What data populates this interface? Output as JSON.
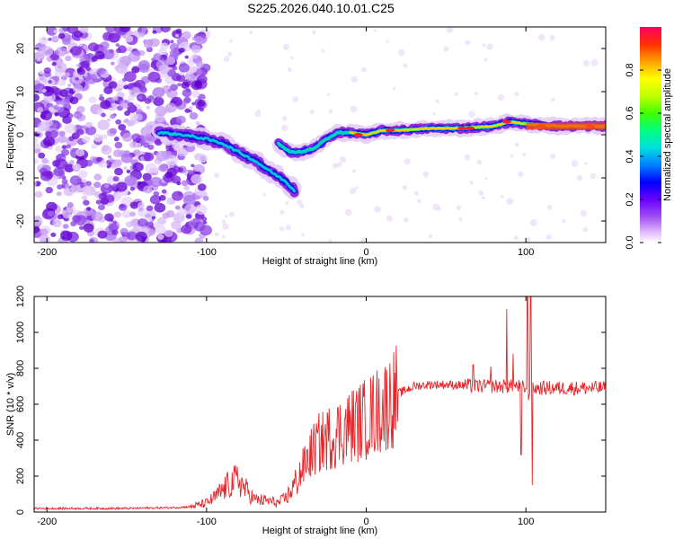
{
  "title": "S225.2026.040.10.01.C25",
  "colors": {
    "snr_line": "#e8262a",
    "scatter_purple": "#8a2be2",
    "frame": "#000000"
  },
  "chart_data": [
    {
      "type": "heatmap",
      "title": "S225.2026.040.10.01.C25",
      "xlabel": "Height of straight line (km)",
      "ylabel": "Frequency (Hz)",
      "xlim": [
        -208,
        150
      ],
      "ylim": [
        -25,
        25
      ],
      "xticks": [
        -200,
        -100,
        0,
        100
      ],
      "yticks": [
        -20,
        -10,
        0,
        10,
        20
      ],
      "colorbar": {
        "label": "Normalized spectral amplitude",
        "range": [
          0,
          1
        ],
        "ticks": [
          "0.0",
          "0.2",
          "0.4",
          "0.6",
          "0.8"
        ]
      },
      "ridge": {
        "segment1": [
          [
            -130,
            0.5
          ],
          [
            -115,
            0
          ],
          [
            -100,
            -1
          ],
          [
            -90,
            -2
          ],
          [
            -80,
            -4
          ],
          [
            -70,
            -6
          ],
          [
            -60,
            -8.5
          ],
          [
            -50,
            -11
          ],
          [
            -45,
            -13
          ]
        ],
        "segment2": [
          [
            -55,
            -2
          ],
          [
            -48,
            -4
          ],
          [
            -40,
            -4
          ],
          [
            -32,
            -3
          ],
          [
            -25,
            -1
          ],
          [
            -18,
            0.5
          ],
          [
            -10,
            0.5
          ],
          [
            0,
            0
          ],
          [
            10,
            1
          ],
          [
            20,
            1
          ],
          [
            40,
            1.5
          ],
          [
            60,
            1.5
          ],
          [
            80,
            2
          ],
          [
            90,
            3
          ],
          [
            100,
            2.5
          ],
          [
            120,
            2
          ],
          [
            150,
            2
          ]
        ]
      }
    },
    {
      "type": "line",
      "xlabel": "Height of straight line (km)",
      "ylabel": "SNR (10 * v/v)",
      "xlim": [
        -208,
        150
      ],
      "ylim": [
        0,
        1200
      ],
      "xticks": [
        -200,
        -100,
        0,
        100
      ],
      "yticks": [
        0,
        200,
        400,
        600,
        800,
        1000,
        1200
      ],
      "x": [
        -208,
        -180,
        -150,
        -120,
        -110,
        -100,
        -95,
        -90,
        -85,
        -80,
        -75,
        -70,
        -60,
        -55,
        -50,
        -45,
        -40,
        -35,
        -30,
        -20,
        -10,
        0,
        10,
        20,
        30,
        40,
        50,
        60,
        70,
        80,
        90,
        95,
        100,
        102,
        105,
        110,
        120,
        140,
        150
      ],
      "y": [
        20,
        20,
        20,
        25,
        30,
        50,
        80,
        120,
        160,
        180,
        120,
        70,
        60,
        50,
        80,
        150,
        240,
        320,
        380,
        430,
        480,
        520,
        580,
        660,
        700,
        710,
        710,
        705,
        700,
        700,
        700,
        700,
        690,
        650,
        690,
        690,
        690,
        690,
        690
      ],
      "spikes": [
        [
          67,
          820
        ],
        [
          78,
          810
        ],
        [
          88,
          1130
        ],
        [
          92,
          880
        ],
        [
          101,
          1200
        ],
        [
          103,
          1200
        ],
        [
          104,
          150
        ],
        [
          97,
          320
        ]
      ]
    }
  ]
}
